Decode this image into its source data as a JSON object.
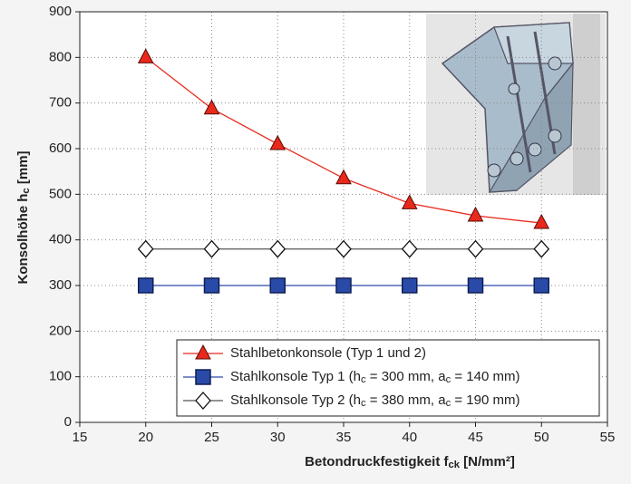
{
  "chart_data": {
    "type": "line",
    "x_label": [
      "Betondruckfestigkeit f",
      "ck",
      " [N/mm²]"
    ],
    "y_label": [
      "Konsolhöhe h",
      "c",
      " [mm]"
    ],
    "x": [
      20,
      25,
      30,
      35,
      40,
      45,
      50
    ],
    "xlim": [
      15,
      55
    ],
    "xticks": [
      15,
      20,
      25,
      30,
      35,
      40,
      45,
      50,
      55
    ],
    "ylim": [
      0,
      900
    ],
    "yticks": [
      0,
      100,
      200,
      300,
      400,
      500,
      600,
      700,
      800,
      900
    ],
    "grid": true,
    "legend": "lower right",
    "series": [
      {
        "name": [
          "Stahlbetonkonsole (Typ 1 und 2)"
        ],
        "color": "#e8291c",
        "marker": "triangle",
        "values": [
          800,
          688,
          610,
          535,
          480,
          453,
          437
        ]
      },
      {
        "name": [
          "Stahlkonsole Typ 1 (h",
          "c",
          " = 300 mm, a",
          "c",
          " = 140 mm)"
        ],
        "color": "#2a4aa8",
        "marker": "square",
        "values": [
          300,
          300,
          300,
          300,
          300,
          300,
          300
        ]
      },
      {
        "name": [
          "Stahlkonsole Typ 2 (h",
          "c",
          " = 380 mm, a",
          "c",
          " = 190 mm)"
        ],
        "color": "#555555",
        "marker": "diamond",
        "values": [
          380,
          380,
          380,
          380,
          380,
          380,
          380
        ]
      }
    ]
  }
}
